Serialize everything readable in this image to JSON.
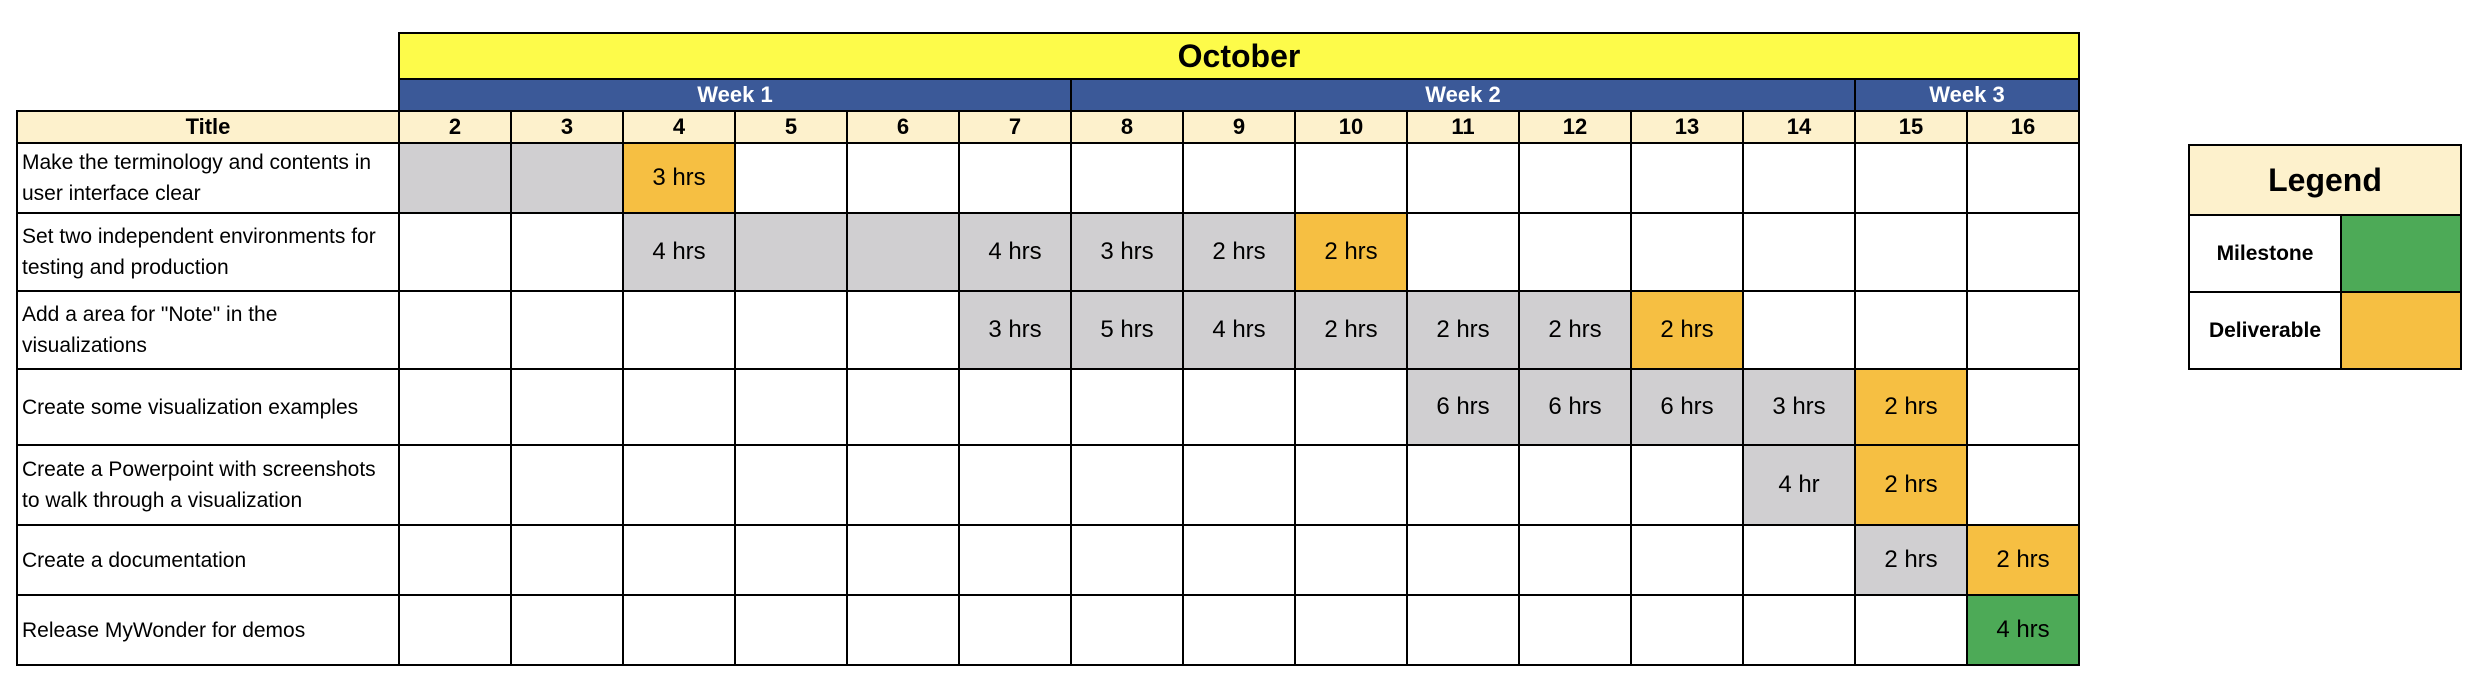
{
  "month": "October",
  "weeks": [
    {
      "label": "Week 1",
      "span": 6
    },
    {
      "label": "Week 2",
      "span": 7
    },
    {
      "label": "Week 3",
      "span": 2
    }
  ],
  "title_header": "Title",
  "days": [
    "2",
    "3",
    "4",
    "5",
    "6",
    "7",
    "8",
    "9",
    "10",
    "11",
    "12",
    "13",
    "14",
    "15",
    "16"
  ],
  "tasks": [
    {
      "title": "Make the terminology and contents in user interface clear",
      "cells": [
        {
          "status": "work",
          "text": ""
        },
        {
          "status": "work",
          "text": ""
        },
        {
          "status": "deliverable",
          "text": "3 hrs"
        },
        {
          "status": "",
          "text": ""
        },
        {
          "status": "",
          "text": ""
        },
        {
          "status": "",
          "text": ""
        },
        {
          "status": "",
          "text": ""
        },
        {
          "status": "",
          "text": ""
        },
        {
          "status": "",
          "text": ""
        },
        {
          "status": "",
          "text": ""
        },
        {
          "status": "",
          "text": ""
        },
        {
          "status": "",
          "text": ""
        },
        {
          "status": "",
          "text": ""
        },
        {
          "status": "",
          "text": ""
        },
        {
          "status": "",
          "text": ""
        }
      ]
    },
    {
      "title": "Set two independent environments for testing and production",
      "cells": [
        {
          "status": "",
          "text": ""
        },
        {
          "status": "",
          "text": ""
        },
        {
          "status": "work",
          "text": "4 hrs"
        },
        {
          "status": "work",
          "text": ""
        },
        {
          "status": "work",
          "text": ""
        },
        {
          "status": "work",
          "text": "4 hrs"
        },
        {
          "status": "work",
          "text": "3 hrs"
        },
        {
          "status": "work",
          "text": "2 hrs"
        },
        {
          "status": "deliverable",
          "text": "2 hrs"
        },
        {
          "status": "",
          "text": ""
        },
        {
          "status": "",
          "text": ""
        },
        {
          "status": "",
          "text": ""
        },
        {
          "status": "",
          "text": ""
        },
        {
          "status": "",
          "text": ""
        },
        {
          "status": "",
          "text": ""
        }
      ]
    },
    {
      "title": "Add a area for \"Note\" in the visualizations",
      "cells": [
        {
          "status": "",
          "text": ""
        },
        {
          "status": "",
          "text": ""
        },
        {
          "status": "",
          "text": ""
        },
        {
          "status": "",
          "text": ""
        },
        {
          "status": "",
          "text": ""
        },
        {
          "status": "work",
          "text": "3 hrs"
        },
        {
          "status": "work",
          "text": "5 hrs"
        },
        {
          "status": "work",
          "text": "4 hrs"
        },
        {
          "status": "work",
          "text": "2 hrs"
        },
        {
          "status": "work",
          "text": "2 hrs"
        },
        {
          "status": "work",
          "text": "2 hrs"
        },
        {
          "status": "deliverable",
          "text": "2 hrs"
        },
        {
          "status": "",
          "text": ""
        },
        {
          "status": "",
          "text": ""
        },
        {
          "status": "",
          "text": ""
        }
      ]
    },
    {
      "title": "Create some visualization examples",
      "cells": [
        {
          "status": "",
          "text": ""
        },
        {
          "status": "",
          "text": ""
        },
        {
          "status": "",
          "text": ""
        },
        {
          "status": "",
          "text": ""
        },
        {
          "status": "",
          "text": ""
        },
        {
          "status": "",
          "text": ""
        },
        {
          "status": "",
          "text": ""
        },
        {
          "status": "",
          "text": ""
        },
        {
          "status": "",
          "text": ""
        },
        {
          "status": "work",
          "text": "6 hrs"
        },
        {
          "status": "work",
          "text": "6 hrs"
        },
        {
          "status": "work",
          "text": "6 hrs"
        },
        {
          "status": "work",
          "text": "3 hrs"
        },
        {
          "status": "deliverable",
          "text": "2 hrs"
        },
        {
          "status": "",
          "text": ""
        }
      ]
    },
    {
      "title": "Create a Powerpoint with screenshots to walk through a visualization",
      "cells": [
        {
          "status": "",
          "text": ""
        },
        {
          "status": "",
          "text": ""
        },
        {
          "status": "",
          "text": ""
        },
        {
          "status": "",
          "text": ""
        },
        {
          "status": "",
          "text": ""
        },
        {
          "status": "",
          "text": ""
        },
        {
          "status": "",
          "text": ""
        },
        {
          "status": "",
          "text": ""
        },
        {
          "status": "",
          "text": ""
        },
        {
          "status": "",
          "text": ""
        },
        {
          "status": "",
          "text": ""
        },
        {
          "status": "",
          "text": ""
        },
        {
          "status": "work",
          "text": "4 hr"
        },
        {
          "status": "deliverable",
          "text": "2 hrs"
        },
        {
          "status": "",
          "text": ""
        }
      ]
    },
    {
      "title": "Create a documentation",
      "cells": [
        {
          "status": "",
          "text": ""
        },
        {
          "status": "",
          "text": ""
        },
        {
          "status": "",
          "text": ""
        },
        {
          "status": "",
          "text": ""
        },
        {
          "status": "",
          "text": ""
        },
        {
          "status": "",
          "text": ""
        },
        {
          "status": "",
          "text": ""
        },
        {
          "status": "",
          "text": ""
        },
        {
          "status": "",
          "text": ""
        },
        {
          "status": "",
          "text": ""
        },
        {
          "status": "",
          "text": ""
        },
        {
          "status": "",
          "text": ""
        },
        {
          "status": "",
          "text": ""
        },
        {
          "status": "work",
          "text": "2 hrs"
        },
        {
          "status": "deliverable",
          "text": "2 hrs"
        }
      ]
    },
    {
      "title": "Release MyWonder for demos",
      "cells": [
        {
          "status": "",
          "text": ""
        },
        {
          "status": "",
          "text": ""
        },
        {
          "status": "",
          "text": ""
        },
        {
          "status": "",
          "text": ""
        },
        {
          "status": "",
          "text": ""
        },
        {
          "status": "",
          "text": ""
        },
        {
          "status": "",
          "text": ""
        },
        {
          "status": "",
          "text": ""
        },
        {
          "status": "",
          "text": ""
        },
        {
          "status": "",
          "text": ""
        },
        {
          "status": "",
          "text": ""
        },
        {
          "status": "",
          "text": ""
        },
        {
          "status": "",
          "text": ""
        },
        {
          "status": "",
          "text": ""
        },
        {
          "status": "milestone",
          "text": "4 hrs"
        }
      ]
    }
  ],
  "legend": {
    "title": "Legend",
    "items": [
      {
        "label": "Milestone",
        "color": "#4daa57"
      },
      {
        "label": "Deliverable",
        "color": "#f6bf42"
      }
    ]
  },
  "colors": {
    "month_bg": "#fdfb4a",
    "week_bg": "#3b5998",
    "header_bg": "#fdf1cc",
    "work": "#d0cfd1",
    "deliverable": "#f6bf42",
    "milestone": "#4daa57"
  }
}
